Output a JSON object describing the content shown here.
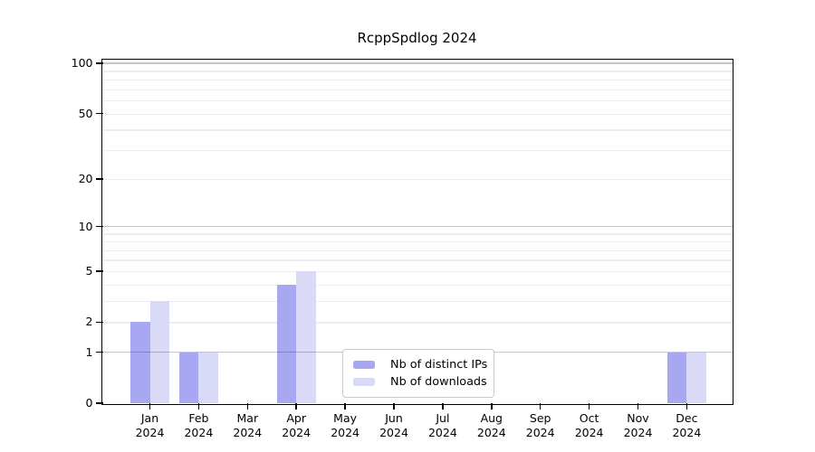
{
  "chart_data": {
    "type": "bar",
    "title": "RcppSpdlog 2024",
    "categories": [
      "Jan",
      "Feb",
      "Mar",
      "Apr",
      "May",
      "Jun",
      "Jul",
      "Aug",
      "Sep",
      "Oct",
      "Nov",
      "Dec"
    ],
    "x_year_label": "2024",
    "series": [
      {
        "name": "Nb of distinct IPs",
        "color": "#a8a8f2",
        "values": [
          2,
          1,
          0,
          4,
          0,
          0,
          0,
          0,
          0,
          0,
          0,
          1
        ]
      },
      {
        "name": "Nb of downloads",
        "color": "#d9d9f8",
        "values": [
          3,
          1,
          0,
          5,
          0,
          0,
          0,
          0,
          0,
          0,
          0,
          1
        ]
      }
    ],
    "y_axis": {
      "scale": "log1p",
      "tick_labels": [
        0,
        1,
        2,
        5,
        10,
        20,
        50,
        100
      ],
      "major_gridlines": [
        1,
        10,
        100
      ],
      "minor_gridlines": [
        2,
        3,
        4,
        5,
        6,
        7,
        8,
        9,
        20,
        30,
        40,
        50,
        60,
        70,
        80,
        90
      ],
      "ylim": [
        0,
        105
      ]
    },
    "legend": {
      "position": "inside-bottom-center",
      "entries": [
        "Nb of distinct IPs",
        "Nb of downloads"
      ]
    },
    "grid": "on",
    "xlabel": "",
    "ylabel": ""
  },
  "colors": {
    "bar_distinct_ips": "#a8a8f2",
    "bar_downloads": "#d9d9f8",
    "major_gridline": "rgba(0,0,0,0.22)",
    "minor_gridline": "rgba(0,0,0,0.07)",
    "axis": "#000000",
    "legend_border": "#cbcbcb",
    "background": "#ffffff"
  }
}
